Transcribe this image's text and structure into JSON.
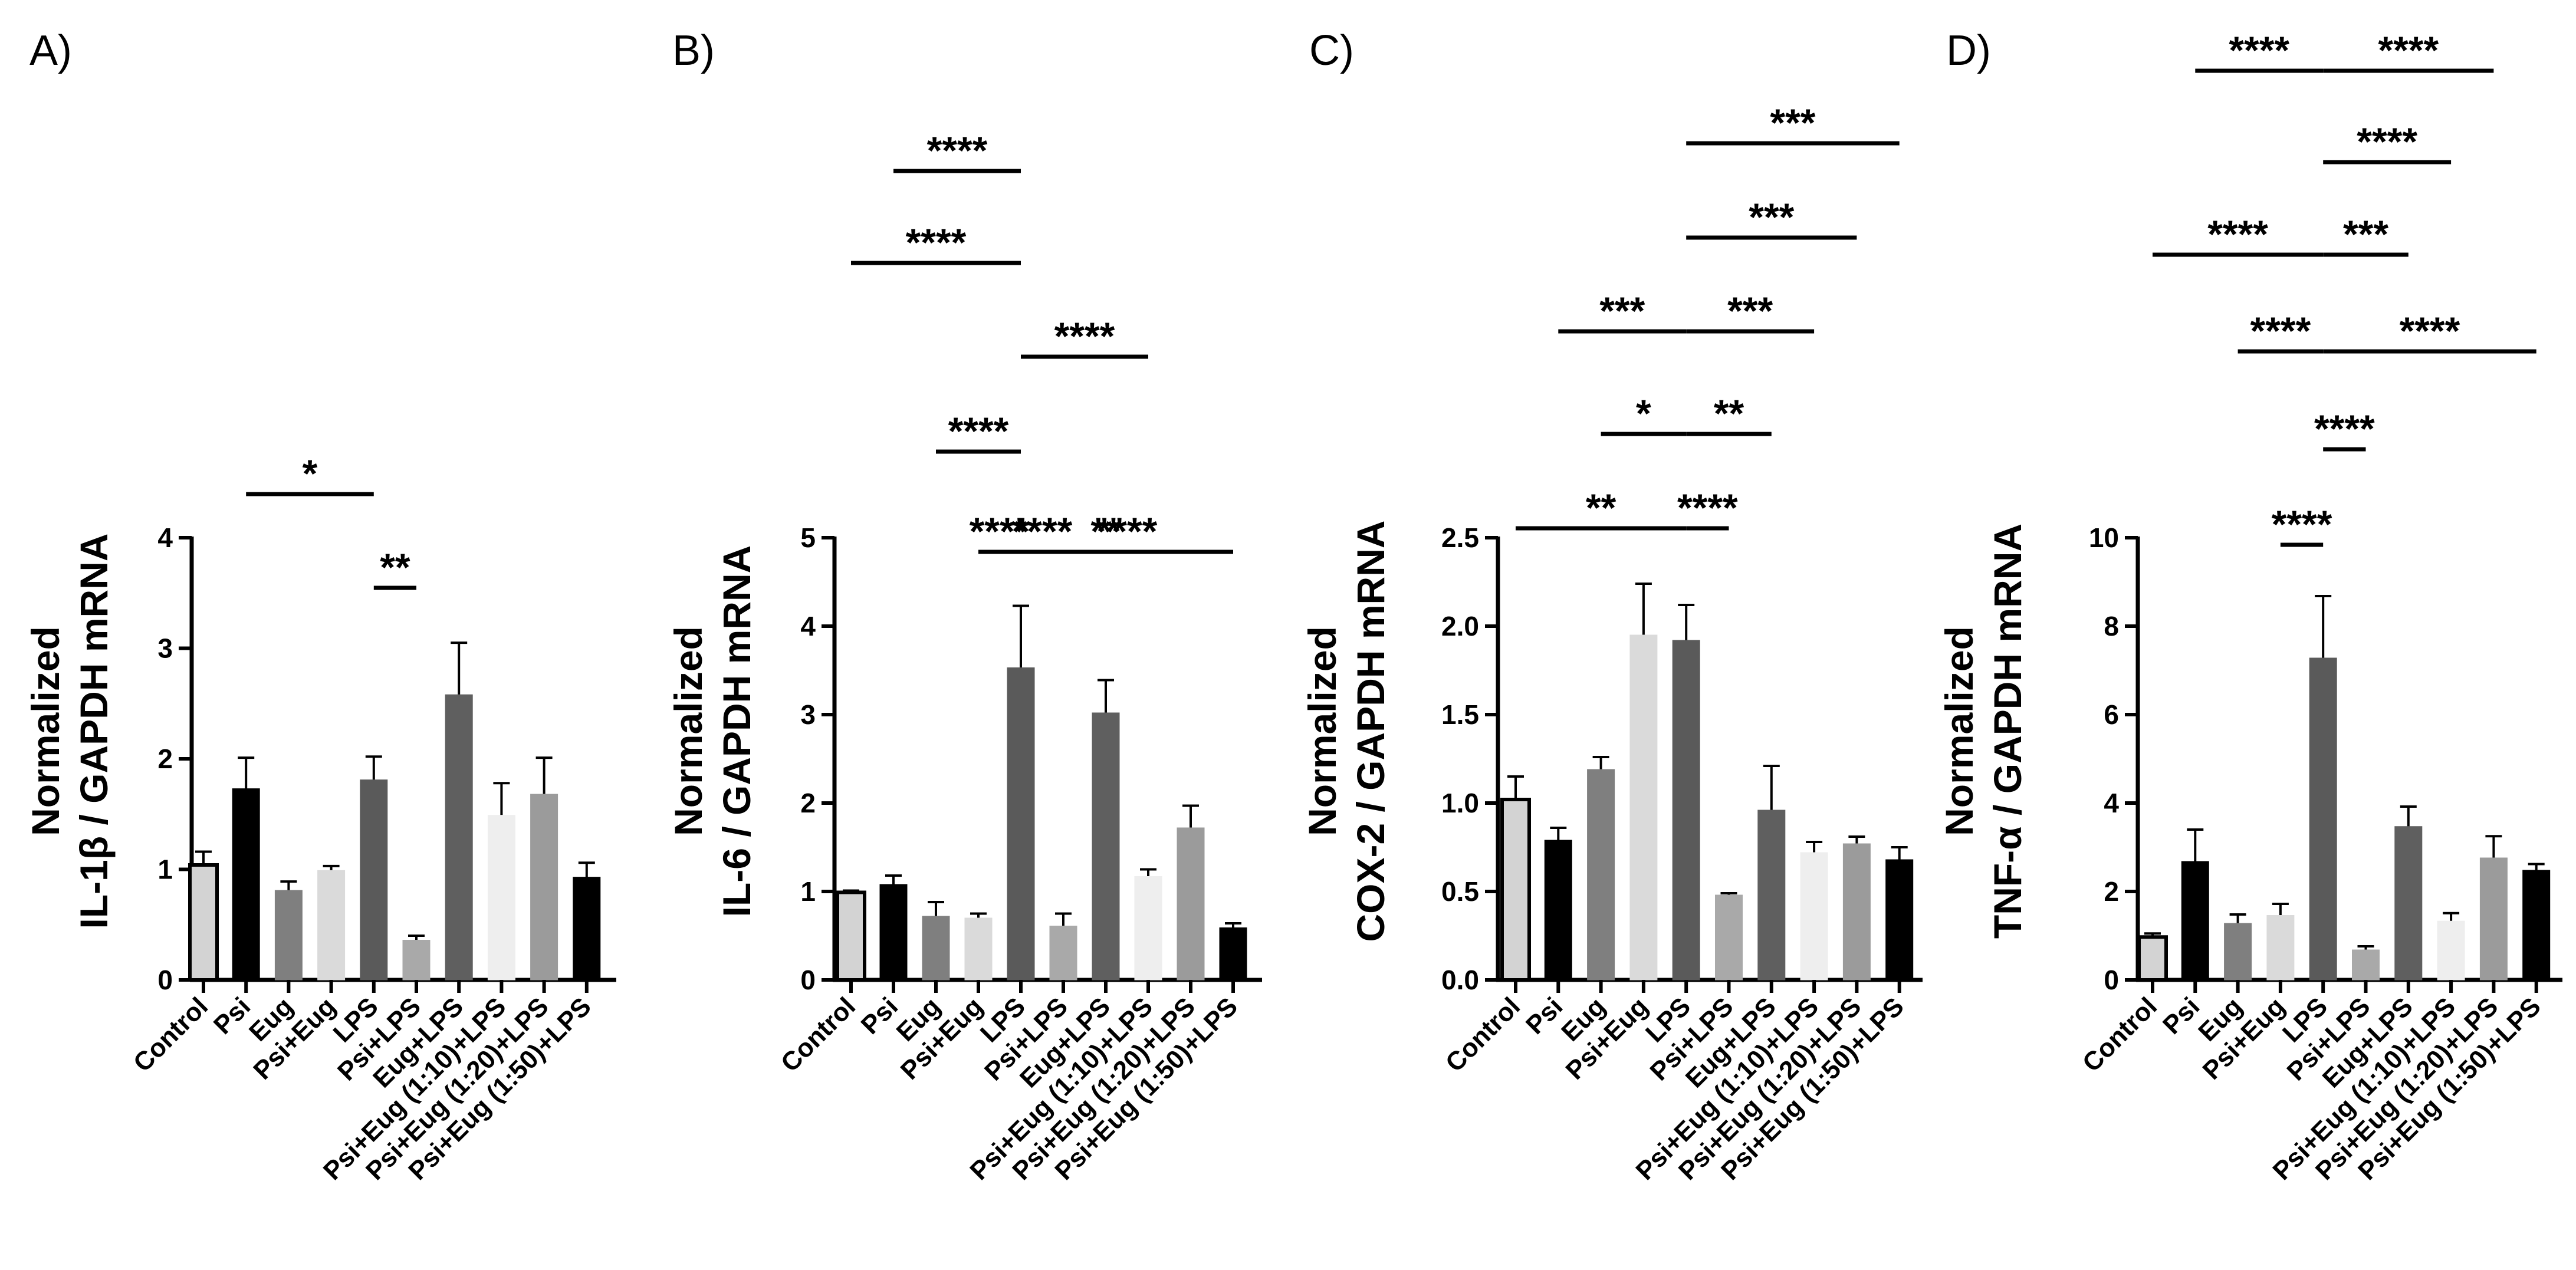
{
  "colors": {
    "Control": "#d3d3d3",
    "Psi": "#000000",
    "Eug": "#7f7f7f",
    "Psi+Eug": "#dadada",
    "LPS": "#5a5a5a",
    "Psi+LPS": "#a9a9a9",
    "Eug+LPS": "#5f5f5f",
    "Psi+Eug (1:10)+LPS": "#eeeeee",
    "Psi+Eug (1:20)+LPS": "#9b9b9b",
    "Psi+Eug (1:50)+LPS": "#000000"
  },
  "chart_data": [
    {
      "panel": "A)",
      "type": "bar",
      "title": "",
      "xlabel": "",
      "ylabel": [
        "Normalized",
        "IL-1β / GAPDH mRNA"
      ],
      "ylim": [
        0,
        4
      ],
      "ytick_values": [
        0,
        1,
        2,
        3,
        4
      ],
      "ytick_labels": [
        "0",
        "1",
        "2",
        "3",
        "4"
      ],
      "categories": [
        "Control",
        "Psi",
        "Eug",
        "Psi+Eug",
        "LPS",
        "Psi+LPS",
        "Eug+LPS",
        "Psi+Eug (1:10)+LPS",
        "Psi+Eug (1:20)+LPS",
        "Psi+Eug (1:50)+LPS"
      ],
      "values": [
        1.04,
        1.73,
        0.81,
        0.99,
        1.81,
        0.36,
        2.58,
        1.49,
        1.68,
        0.93
      ],
      "errors": [
        0.12,
        0.28,
        0.08,
        0.04,
        0.21,
        0.04,
        0.47,
        0.29,
        0.33,
        0.13
      ],
      "significance": [
        {
          "from": 1,
          "to": 4,
          "label": "*"
        },
        {
          "from": 4,
          "to": 5,
          "label": "**"
        }
      ]
    },
    {
      "panel": "B)",
      "type": "bar",
      "title": "",
      "xlabel": "",
      "ylabel": [
        "Normalized",
        "IL-6 / GAPDH mRNA"
      ],
      "ylim": [
        0,
        5
      ],
      "ytick_values": [
        0,
        1,
        2,
        3,
        4,
        5
      ],
      "ytick_labels": [
        "0",
        "1",
        "2",
        "3",
        "4",
        "5"
      ],
      "categories": [
        "Control",
        "Psi",
        "Eug",
        "Psi+Eug",
        "LPS",
        "Psi+LPS",
        "Eug+LPS",
        "Psi+Eug (1:10)+LPS",
        "Psi+Eug (1:20)+LPS",
        "Psi+Eug (1:50)+LPS"
      ],
      "values": [
        0.99,
        1.08,
        0.72,
        0.7,
        3.53,
        0.61,
        3.02,
        1.17,
        1.72,
        0.59
      ],
      "errors": [
        0.02,
        0.1,
        0.16,
        0.05,
        0.7,
        0.14,
        0.37,
        0.08,
        0.25,
        0.05
      ],
      "significance": [
        {
          "from": 1,
          "to": 4,
          "label": "****"
        },
        {
          "from": 0,
          "to": 4,
          "label": "****"
        },
        {
          "from": 4,
          "to": 7,
          "label": "****"
        },
        {
          "from": 2,
          "to": 4,
          "label": "****"
        },
        {
          "from": 4,
          "to": 9,
          "label": "****"
        },
        {
          "from": 4,
          "to": 5,
          "label": "****"
        },
        {
          "from": 3,
          "to": 4,
          "label": "****"
        },
        {
          "from": 4,
          "to": 8,
          "label": "**"
        }
      ]
    },
    {
      "panel": "C)",
      "type": "bar",
      "title": "",
      "xlabel": "",
      "ylabel": [
        "Normalized",
        "COX-2 / GAPDH mRNA"
      ],
      "ylim": [
        0,
        2.5
      ],
      "ytick_values": [
        0,
        0.5,
        1,
        1.5,
        2,
        2.5
      ],
      "ytick_labels": [
        "0.0",
        "0.5",
        "1.0",
        "1.5",
        "2.0",
        "2.5"
      ],
      "categories": [
        "Control",
        "Psi",
        "Eug",
        "Psi+Eug",
        "LPS",
        "Psi+LPS",
        "Eug+LPS",
        "Psi+Eug (1:10)+LPS",
        "Psi+Eug (1:20)+LPS",
        "Psi+Eug (1:50)+LPS"
      ],
      "values": [
        1.02,
        0.79,
        1.19,
        1.95,
        1.92,
        0.48,
        0.96,
        0.72,
        0.77,
        0.68
      ],
      "errors": [
        0.13,
        0.07,
        0.07,
        0.29,
        0.2,
        0.01,
        0.25,
        0.06,
        0.04,
        0.07
      ],
      "significance": [
        {
          "from": 4,
          "to": 9,
          "label": "***"
        },
        {
          "from": 4,
          "to": 8,
          "label": "***"
        },
        {
          "from": 1,
          "to": 4,
          "label": "***"
        },
        {
          "from": 4,
          "to": 7,
          "label": "***"
        },
        {
          "from": 2,
          "to": 4,
          "label": "*"
        },
        {
          "from": 4,
          "to": 6,
          "label": "**"
        },
        {
          "from": 0,
          "to": 4,
          "label": "**"
        },
        {
          "from": 4,
          "to": 5,
          "label": "****"
        }
      ]
    },
    {
      "panel": "D)",
      "type": "bar",
      "title": "",
      "xlabel": "",
      "ylabel": [
        "Normalized",
        "TNF-α / GAPDH mRNA"
      ],
      "ylim": [
        0,
        10
      ],
      "ytick_values": [
        0,
        2,
        4,
        6,
        8,
        10
      ],
      "ytick_labels": [
        "0",
        "2",
        "4",
        "6",
        "8",
        "10"
      ],
      "categories": [
        "Control",
        "Psi",
        "Eug",
        "Psi+Eug",
        "LPS",
        "Psi+LPS",
        "Eug+LPS",
        "Psi+Eug (1:10)+LPS",
        "Psi+Eug (1:20)+LPS",
        "Psi+Eug (1:50)+LPS"
      ],
      "values": [
        0.97,
        2.68,
        1.28,
        1.46,
        7.28,
        0.68,
        3.47,
        1.33,
        2.76,
        2.48
      ],
      "errors": [
        0.08,
        0.72,
        0.2,
        0.26,
        1.4,
        0.08,
        0.45,
        0.18,
        0.49,
        0.14
      ],
      "significance": [
        {
          "from": 1,
          "to": 4,
          "label": "****"
        },
        {
          "from": 4,
          "to": 8,
          "label": "****"
        },
        {
          "from": 4,
          "to": 7,
          "label": "****"
        },
        {
          "from": 0,
          "to": 4,
          "label": "****"
        },
        {
          "from": 4,
          "to": 6,
          "label": "***"
        },
        {
          "from": 2,
          "to": 4,
          "label": "****"
        },
        {
          "from": 4,
          "to": 9,
          "label": "****"
        },
        {
          "from": 4,
          "to": 5,
          "label": "****"
        },
        {
          "from": 3,
          "to": 4,
          "label": "****"
        }
      ]
    }
  ]
}
